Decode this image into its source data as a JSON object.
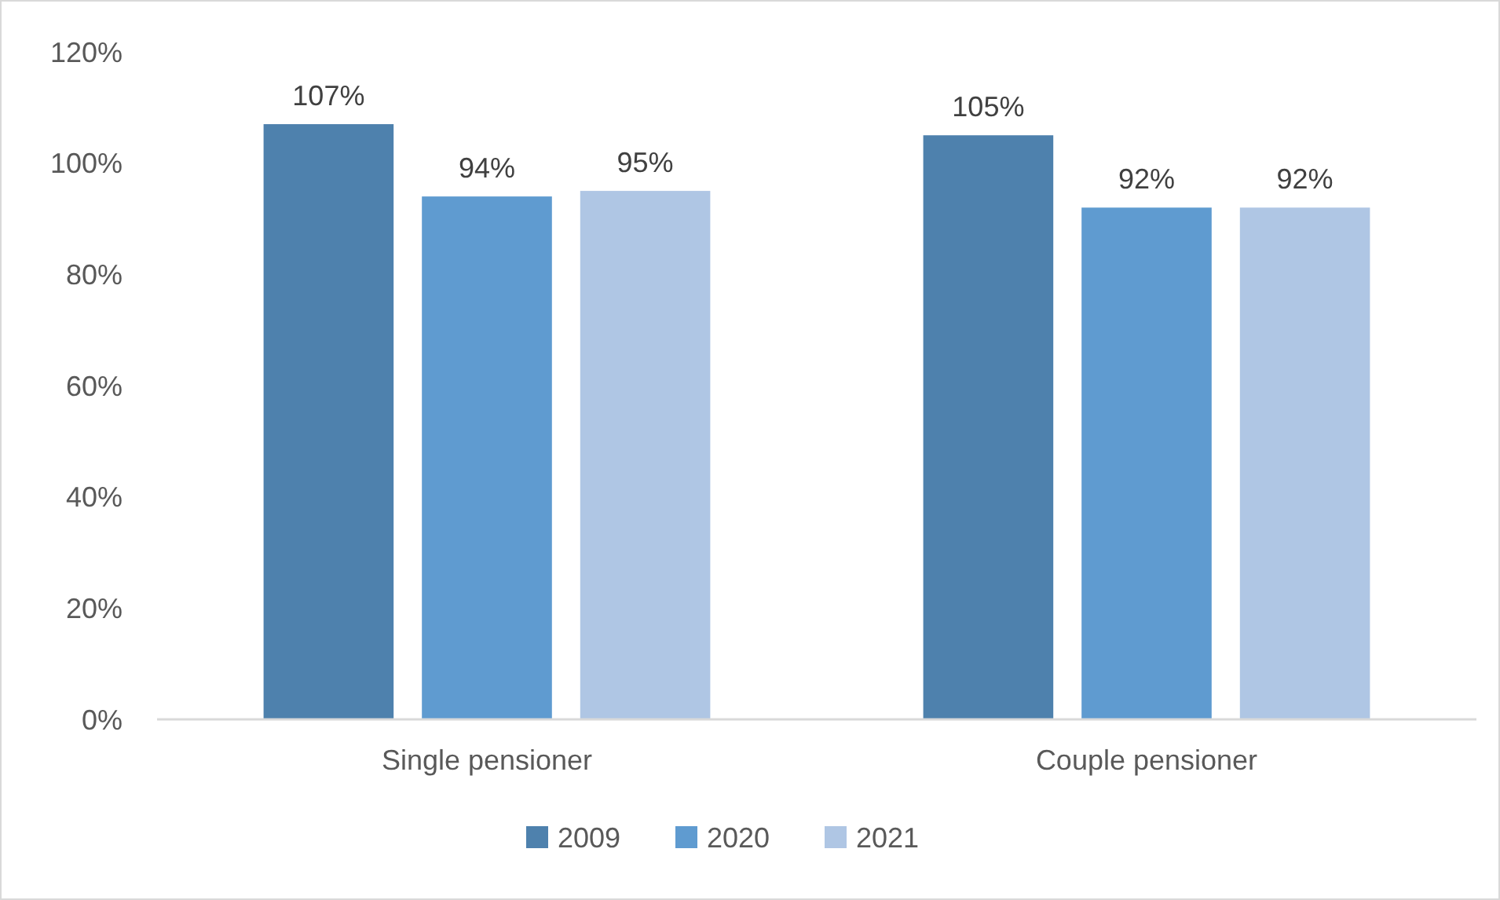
{
  "chart_data": {
    "type": "bar",
    "categories": [
      "Single pensioner",
      "Couple pensioner"
    ],
    "series": [
      {
        "name": "2009",
        "color": "#4e81ad",
        "values": [
          107,
          105
        ],
        "value_labels": [
          "107%",
          "105%"
        ]
      },
      {
        "name": "2020",
        "color": "#5f9bd0",
        "values": [
          94,
          92
        ],
        "value_labels": [
          "94%",
          "92%"
        ]
      },
      {
        "name": "2021",
        "color": "#afc6e4",
        "values": [
          95,
          92
        ],
        "value_labels": [
          "95%",
          "92%"
        ]
      }
    ],
    "ylim": [
      0,
      120
    ],
    "yticks": [
      {
        "value": 0,
        "label": "0%"
      },
      {
        "value": 20,
        "label": "20%"
      },
      {
        "value": 40,
        "label": "40%"
      },
      {
        "value": 60,
        "label": "60%"
      },
      {
        "value": 80,
        "label": "80%"
      },
      {
        "value": 100,
        "label": "100%"
      },
      {
        "value": 120,
        "label": "120%"
      }
    ],
    "grid": false,
    "legend": "bottom"
  }
}
